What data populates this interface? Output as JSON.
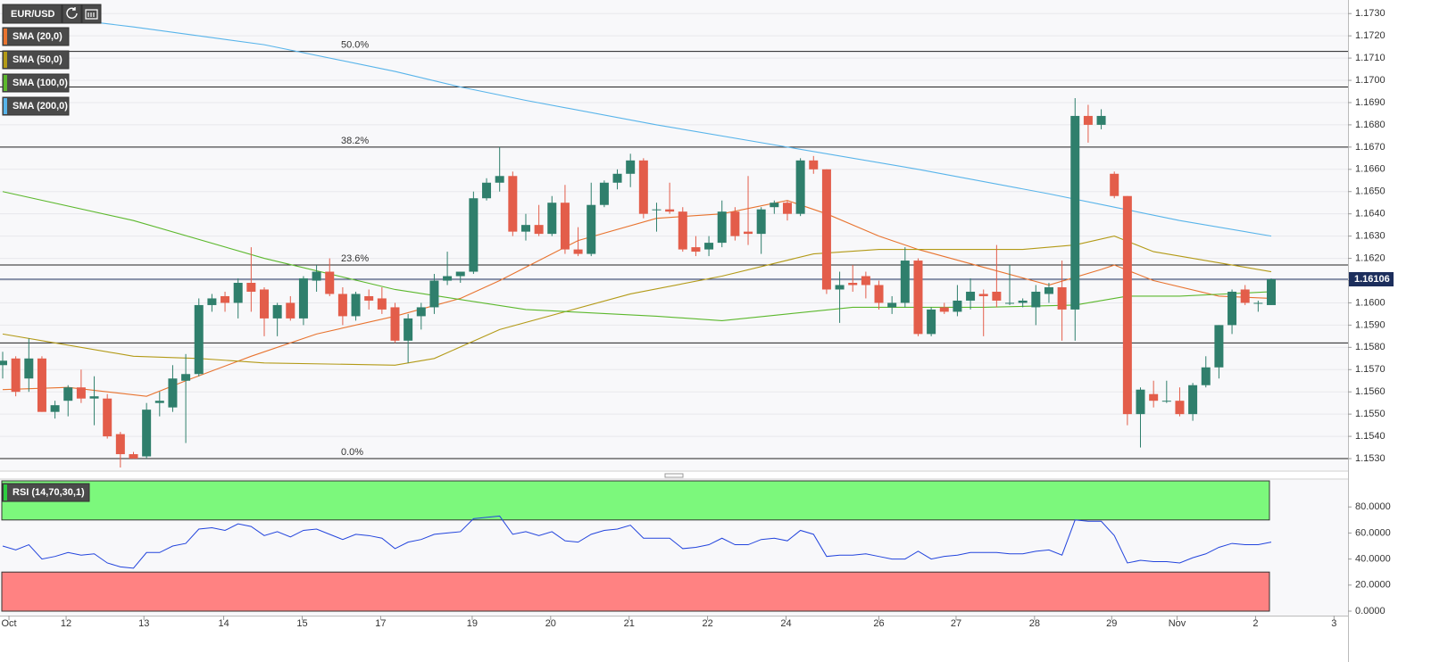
{
  "chart_data": [
    {
      "type": "candlestick",
      "title": "EUR/USD",
      "up_color": "#2f7f6c",
      "down_color": "#e35d4a",
      "xlim": [
        -0.205,
        102.87
      ],
      "xticks": [
        {
          "value": 0.48,
          "label": "Oct"
        },
        {
          "value": 4.85,
          "label": "12"
        },
        {
          "value": 10.8,
          "label": "13"
        },
        {
          "value": 16.9,
          "label": "14"
        },
        {
          "value": 22.9,
          "label": "15"
        },
        {
          "value": 28.9,
          "label": "17"
        },
        {
          "value": 35.9,
          "label": "19"
        },
        {
          "value": 41.9,
          "label": "20"
        },
        {
          "value": 47.9,
          "label": "21"
        },
        {
          "value": 53.9,
          "label": "22"
        },
        {
          "value": 59.9,
          "label": "24"
        },
        {
          "value": 67.0,
          "label": "26"
        },
        {
          "value": 72.9,
          "label": "27"
        },
        {
          "value": 78.9,
          "label": "28"
        },
        {
          "value": 84.8,
          "label": "29"
        },
        {
          "value": 89.8,
          "label": "Nov"
        },
        {
          "value": 95.8,
          "label": "2"
        },
        {
          "value": 101.8,
          "label": "3"
        }
      ],
      "ylim": [
        1.15248,
        1.17361
      ],
      "yticks": [
        {
          "value": 1.153,
          "label": "1.1530"
        },
        {
          "value": 1.154,
          "label": "1.1540"
        },
        {
          "value": 1.155,
          "label": "1.1550"
        },
        {
          "value": 1.156,
          "label": "1.1560"
        },
        {
          "value": 1.157,
          "label": "1.1570"
        },
        {
          "value": 1.158,
          "label": "1.1580"
        },
        {
          "value": 1.159,
          "label": "1.1590"
        },
        {
          "value": 1.16,
          "label": "1.1600"
        },
        {
          "value": 1.161,
          "label": "1.1610"
        },
        {
          "value": 1.162,
          "label": "1.1620"
        },
        {
          "value": 1.163,
          "label": "1.1630"
        },
        {
          "value": 1.164,
          "label": "1.1640"
        },
        {
          "value": 1.165,
          "label": "1.1650"
        },
        {
          "value": 1.166,
          "label": "1.1660"
        },
        {
          "value": 1.167,
          "label": "1.1670"
        },
        {
          "value": 1.168,
          "label": "1.1680"
        },
        {
          "value": 1.169,
          "label": "1.1690"
        },
        {
          "value": 1.17,
          "label": "1.1700"
        },
        {
          "value": 1.171,
          "label": "1.1710"
        },
        {
          "value": 1.172,
          "label": "1.1720"
        },
        {
          "value": 1.173,
          "label": "1.1730"
        }
      ],
      "grid": true,
      "open": [
        1.1572,
        1.1575,
        1.1566,
        1.1575,
        1.1551,
        1.1556,
        1.1562,
        1.1557,
        1.1557,
        1.1541,
        1.1532,
        1.1531,
        1.1555,
        1.1553,
        1.1565,
        1.1568,
        1.1599,
        1.1603,
        1.16,
        1.1609,
        1.1606,
        1.1593,
        1.16,
        1.1593,
        1.161,
        1.1614,
        1.1604,
        1.1594,
        1.1603,
        1.1602,
        1.1598,
        1.1583,
        1.1594,
        1.1598,
        1.161,
        1.1612,
        1.1614,
        1.1647,
        1.1654,
        1.1657,
        1.1632,
        1.1635,
        1.1631,
        1.1645,
        1.1624,
        1.1622,
        1.1644,
        1.1654,
        1.1658,
        1.1664,
        1.1642,
        1.1642,
        1.1641,
        1.1625,
        1.1624,
        1.1627,
        1.1641,
        1.1632,
        1.1631,
        1.1643,
        1.1645,
        1.164,
        1.1664,
        1.166,
        1.1606,
        1.1609,
        1.1612,
        1.1608,
        1.1598,
        1.16,
        1.1619,
        1.1586,
        1.1598,
        1.1596,
        1.1601,
        1.1604,
        1.1605,
        1.16,
        1.16,
        1.1598,
        1.1604,
        1.1607,
        1.1597,
        1.1684,
        1.168,
        1.1658,
        1.1648,
        1.155,
        1.1559,
        1.1556,
        1.1556,
        1.155,
        1.1563,
        1.1571,
        1.159,
        1.1606,
        1.16,
        1.1599
      ],
      "high": [
        1.1578,
        1.1576,
        1.1584,
        1.1576,
        1.1556,
        1.1563,
        1.157,
        1.1567,
        1.1559,
        1.1542,
        1.1533,
        1.1555,
        1.156,
        1.1572,
        1.1577,
        1.1602,
        1.1604,
        1.1605,
        1.1611,
        1.1625,
        1.1607,
        1.16,
        1.1603,
        1.1612,
        1.1617,
        1.162,
        1.1607,
        1.1605,
        1.1606,
        1.1607,
        1.16,
        1.1595,
        1.16,
        1.1613,
        1.1623,
        1.1614,
        1.165,
        1.1656,
        1.167,
        1.1659,
        1.164,
        1.1644,
        1.1648,
        1.1653,
        1.1634,
        1.1654,
        1.1655,
        1.166,
        1.1667,
        1.1665,
        1.1645,
        1.1654,
        1.1643,
        1.163,
        1.163,
        1.1646,
        1.1643,
        1.1657,
        1.1643,
        1.1646,
        1.1646,
        1.1665,
        1.1666,
        1.166,
        1.1614,
        1.1617,
        1.1614,
        1.161,
        1.1603,
        1.1625,
        1.162,
        1.1598,
        1.16,
        1.1608,
        1.1611,
        1.1606,
        1.1626,
        1.1617,
        1.1602,
        1.1608,
        1.1609,
        1.1619,
        1.1692,
        1.1689,
        1.1687,
        1.1659,
        1.1648,
        1.1562,
        1.1565,
        1.1565,
        1.1562,
        1.1564,
        1.1576,
        1.159,
        1.1606,
        1.1608,
        1.1601,
        1.1611
      ],
      "low": [
        1.1566,
        1.1558,
        1.156,
        1.1551,
        1.1548,
        1.1549,
        1.1555,
        1.1545,
        1.1539,
        1.1526,
        1.153,
        1.153,
        1.1549,
        1.1551,
        1.1537,
        1.1567,
        1.1596,
        1.1596,
        1.1593,
        1.1596,
        1.1585,
        1.1585,
        1.1592,
        1.159,
        1.1605,
        1.1603,
        1.159,
        1.1592,
        1.1597,
        1.1595,
        1.1582,
        1.1573,
        1.1588,
        1.1595,
        1.1608,
        1.1609,
        1.1613,
        1.1646,
        1.165,
        1.163,
        1.1628,
        1.163,
        1.163,
        1.1622,
        1.1621,
        1.1621,
        1.1643,
        1.1651,
        1.1652,
        1.1638,
        1.1632,
        1.164,
        1.1623,
        1.1621,
        1.1621,
        1.1625,
        1.1628,
        1.1626,
        1.1622,
        1.164,
        1.1637,
        1.1639,
        1.1658,
        1.1604,
        1.1591,
        1.1605,
        1.1602,
        1.1597,
        1.1595,
        1.1598,
        1.1585,
        1.1585,
        1.1595,
        1.1594,
        1.1597,
        1.1585,
        1.1598,
        1.1599,
        1.1598,
        1.159,
        1.16,
        1.1583,
        1.1583,
        1.1672,
        1.1678,
        1.1647,
        1.1545,
        1.1535,
        1.1553,
        1.1555,
        1.1549,
        1.1547,
        1.1562,
        1.1566,
        1.1586,
        1.1599,
        1.1596,
        1.1599
      ],
      "close": [
        1.1574,
        1.156,
        1.1575,
        1.1551,
        1.1554,
        1.1562,
        1.1557,
        1.1558,
        1.154,
        1.1532,
        1.153,
        1.1552,
        1.1556,
        1.1566,
        1.1568,
        1.1599,
        1.1602,
        1.16,
        1.1609,
        1.1605,
        1.1593,
        1.1599,
        1.1593,
        1.1611,
        1.1614,
        1.1604,
        1.1594,
        1.1604,
        1.1601,
        1.1597,
        1.1583,
        1.1593,
        1.1598,
        1.161,
        1.1612,
        1.1614,
        1.1647,
        1.1654,
        1.1657,
        1.1632,
        1.1635,
        1.1631,
        1.1645,
        1.1624,
        1.1622,
        1.1644,
        1.1654,
        1.1658,
        1.1664,
        1.164,
        1.1642,
        1.1641,
        1.1624,
        1.1623,
        1.1627,
        1.1641,
        1.163,
        1.1631,
        1.1642,
        1.1645,
        1.164,
        1.1664,
        1.166,
        1.1606,
        1.1608,
        1.1608,
        1.1608,
        1.16,
        1.16,
        1.1619,
        1.1586,
        1.1597,
        1.1596,
        1.1601,
        1.1605,
        1.1603,
        1.1601,
        1.16,
        1.1601,
        1.1605,
        1.1607,
        1.1597,
        1.1684,
        1.168,
        1.1684,
        1.1648,
        1.155,
        1.1561,
        1.1556,
        1.1556,
        1.155,
        1.1563,
        1.1571,
        1.159,
        1.1605,
        1.16,
        1.16,
        1.16106
      ],
      "overlays": [
        {
          "name": "SMA (20,0)",
          "color": "#e8732f",
          "x": [
            0,
            5,
            8,
            11,
            14,
            19,
            24,
            30,
            35,
            38,
            44,
            50,
            55,
            60,
            63,
            67,
            70,
            75,
            80,
            84,
            85,
            88,
            93,
            97
          ],
          "values": [
            1.1561,
            1.1562,
            1.156,
            1.1558,
            1.1565,
            1.1576,
            1.1586,
            1.1594,
            1.1602,
            1.161,
            1.1628,
            1.1638,
            1.164,
            1.1646,
            1.164,
            1.163,
            1.1624,
            1.1616,
            1.1608,
            1.1615,
            1.1617,
            1.161,
            1.1603,
            1.1602
          ]
        },
        {
          "name": "SMA (50,0)",
          "color": "#b39a17",
          "x": [
            0,
            10,
            15,
            20,
            30,
            33,
            38,
            48,
            55,
            62,
            67,
            78,
            82,
            85,
            88,
            93,
            97
          ],
          "values": [
            1.1586,
            1.1576,
            1.1575,
            1.1573,
            1.1572,
            1.1575,
            1.1588,
            1.1604,
            1.1612,
            1.1622,
            1.1624,
            1.1624,
            1.1626,
            1.163,
            1.1623,
            1.1618,
            1.1614
          ]
        },
        {
          "name": "SMA (100,0)",
          "color": "#5cb82d",
          "x": [
            0,
            10,
            20,
            30,
            40,
            50,
            55,
            60,
            65,
            75,
            82,
            86,
            90,
            97
          ],
          "values": [
            1.165,
            1.1637,
            1.162,
            1.1606,
            1.1597,
            1.1594,
            1.1592,
            1.1595,
            1.1598,
            1.1598,
            1.1599,
            1.1603,
            1.1603,
            1.1605
          ]
        },
        {
          "name": "SMA (200,0)",
          "color": "#58b4ea",
          "x": [
            0,
            10,
            20,
            30,
            35,
            40,
            50,
            60,
            70,
            80,
            85,
            90,
            97
          ],
          "values": [
            1.1731,
            1.1724,
            1.1716,
            1.1704,
            1.1697,
            1.1691,
            1.168,
            1.167,
            1.166,
            1.1649,
            1.1643,
            1.1637,
            1.163
          ]
        }
      ],
      "levels": [
        {
          "value": 1.1713,
          "label": "50.0%"
        },
        {
          "value": 1.167,
          "label": "38.2%"
        },
        {
          "value": 1.1617,
          "label": "23.6%"
        },
        {
          "value": 1.153,
          "label": "0.0%"
        }
      ],
      "lines": [
        1.1697,
        1.1582
      ],
      "last_price": 1.16106,
      "last_price_color": "#1c2e5c"
    },
    {
      "type": "line",
      "title": "RSI (14,70,30,1)",
      "ylim": [
        0,
        100
      ],
      "yticks": [
        {
          "value": 0,
          "label": "0.0000"
        },
        {
          "value": 20,
          "label": "20.0000"
        },
        {
          "value": 40,
          "label": "40.0000"
        },
        {
          "value": 60,
          "label": "60.0000"
        },
        {
          "value": 80,
          "label": "80.0000"
        }
      ],
      "zones": [
        {
          "range": [
            70,
            100
          ],
          "color": "#7cf87c"
        },
        {
          "range": [
            0,
            30
          ],
          "color": "#ff8282"
        }
      ],
      "series": [
        {
          "color": "#2244dd",
          "values": [
            50,
            47,
            51,
            40,
            42,
            45,
            43,
            44,
            37,
            34,
            33,
            45,
            45,
            50,
            52,
            63,
            64,
            62,
            67,
            65,
            58,
            61,
            57,
            62,
            63,
            59,
            55,
            59,
            58,
            56,
            48,
            53,
            55,
            59,
            60,
            61,
            71,
            72,
            73,
            59,
            61,
            58,
            61,
            54,
            53,
            59,
            62,
            63,
            66,
            56,
            56,
            56,
            48,
            49,
            51,
            56,
            51,
            51,
            55,
            56,
            54,
            62,
            59,
            42,
            43,
            43,
            44,
            42,
            40,
            40,
            46,
            40,
            42,
            43,
            45,
            45,
            45,
            44,
            44,
            46,
            47,
            43,
            70,
            69,
            69,
            58,
            37,
            39,
            38,
            38,
            37,
            41,
            44,
            49,
            52,
            51,
            51,
            53
          ]
        }
      ]
    }
  ]
}
